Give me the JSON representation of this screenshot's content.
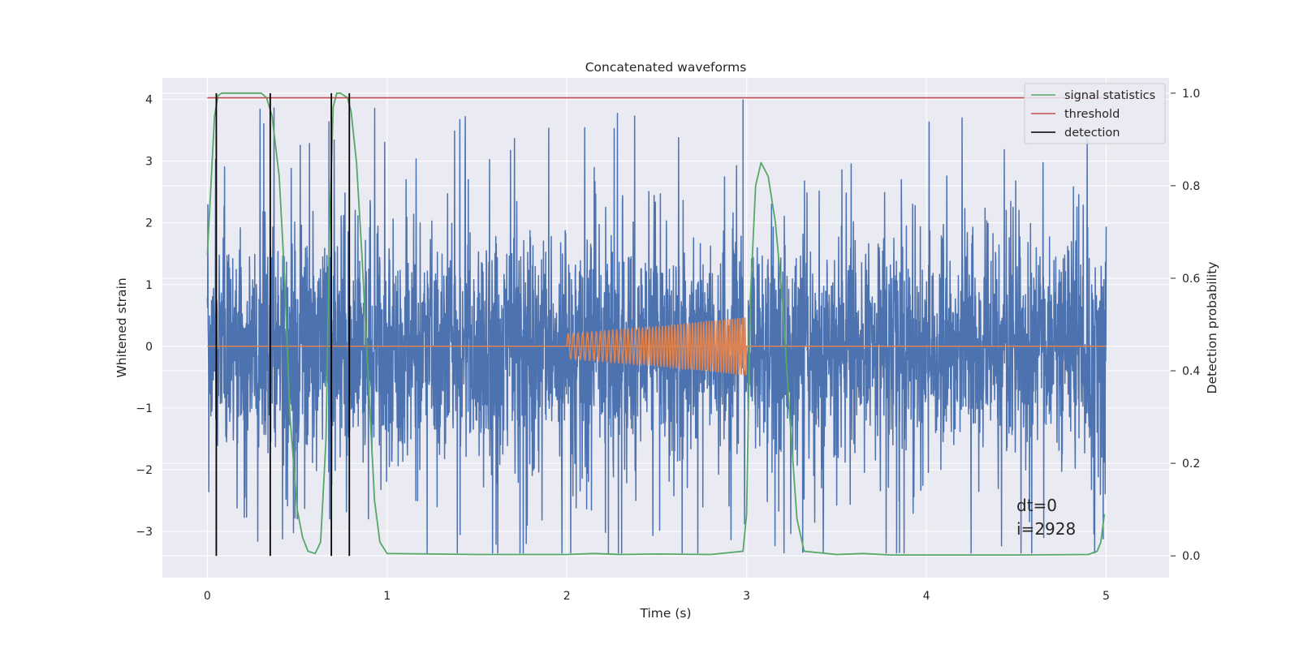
{
  "chart_data": {
    "type": "line",
    "title": "Concatenated waveforms",
    "xlabel": "Time (s)",
    "ylabel": "Whitened strain",
    "y2label": "Detection probability",
    "xlim": [
      -0.25,
      5.35
    ],
    "ylim": [
      -3.75,
      4.35
    ],
    "y2lim": [
      -0.047,
      1.033
    ],
    "xticks": [
      "0",
      "1",
      "2",
      "3",
      "4",
      "5"
    ],
    "yticks": [
      "−3",
      "−2",
      "−1",
      "0",
      "1",
      "2",
      "3",
      "4"
    ],
    "y2ticks": [
      "0.0",
      "0.2",
      "0.4",
      "0.6",
      "0.8",
      "1.0"
    ],
    "grid": true,
    "legend_position": "top-right",
    "strain_noise": {
      "name": "",
      "x_range": [
        0,
        5
      ],
      "typical_envelope": [
        -1.6,
        1.6
      ],
      "max": 4.0,
      "min": -3.35
    },
    "injected_signal": {
      "name": "",
      "x": [
        0,
        2.0,
        2.0,
        2.5,
        3.0,
        3.0,
        5.0
      ],
      "amplitude": [
        0,
        0,
        0.2,
        0.32,
        0.47,
        0,
        0
      ]
    },
    "series": [
      {
        "name": "signal statistics",
        "axis": "right",
        "x": [
          0,
          0.02,
          0.04,
          0.06,
          0.08,
          0.1,
          0.2,
          0.3,
          0.33,
          0.36,
          0.4,
          0.43,
          0.46,
          0.5,
          0.53,
          0.56,
          0.6,
          0.63,
          0.66,
          0.68,
          0.7,
          0.72,
          0.74,
          0.78,
          0.8,
          0.83,
          0.86,
          0.9,
          0.93,
          0.96,
          1.0,
          1.5,
          2.0,
          2.15,
          2.3,
          2.5,
          2.8,
          2.98,
          3.0,
          3.02,
          3.05,
          3.08,
          3.12,
          3.16,
          3.2,
          3.24,
          3.28,
          3.32,
          3.5,
          3.65,
          3.8,
          4.0,
          4.5,
          4.9,
          4.95,
          4.97,
          4.99
        ],
        "values": [
          0.65,
          0.8,
          0.95,
          0.995,
          1.0,
          1.0,
          1.0,
          1.0,
          0.99,
          0.95,
          0.82,
          0.6,
          0.3,
          0.1,
          0.04,
          0.01,
          0.005,
          0.03,
          0.25,
          0.7,
          0.97,
          1.0,
          1.0,
          0.99,
          0.96,
          0.85,
          0.65,
          0.35,
          0.12,
          0.03,
          0.005,
          0.003,
          0.003,
          0.005,
          0.003,
          0.004,
          0.003,
          0.01,
          0.09,
          0.55,
          0.8,
          0.85,
          0.82,
          0.72,
          0.55,
          0.3,
          0.08,
          0.01,
          0.003,
          0.005,
          0.002,
          0.002,
          0.002,
          0.003,
          0.01,
          0.03,
          0.09
        ]
      },
      {
        "name": "threshold",
        "axis": "right",
        "x": [
          0,
          5
        ],
        "values": [
          0.99,
          0.99
        ]
      },
      {
        "name": "detection",
        "axis": "right",
        "x": [
          0.05,
          0.35,
          0.69,
          0.79
        ],
        "values": [
          1.0,
          1.0,
          1.0,
          1.0
        ]
      }
    ],
    "annotations": [
      "dt=0",
      "i=2928"
    ],
    "colors": {
      "noise": "#4c72b0",
      "injected": "#dd8452",
      "signal_statistics": "#55a868",
      "threshold": "#c44e52",
      "detection": "#000000",
      "axes_bg": "#eaeaf2",
      "grid": "#ffffff"
    }
  }
}
